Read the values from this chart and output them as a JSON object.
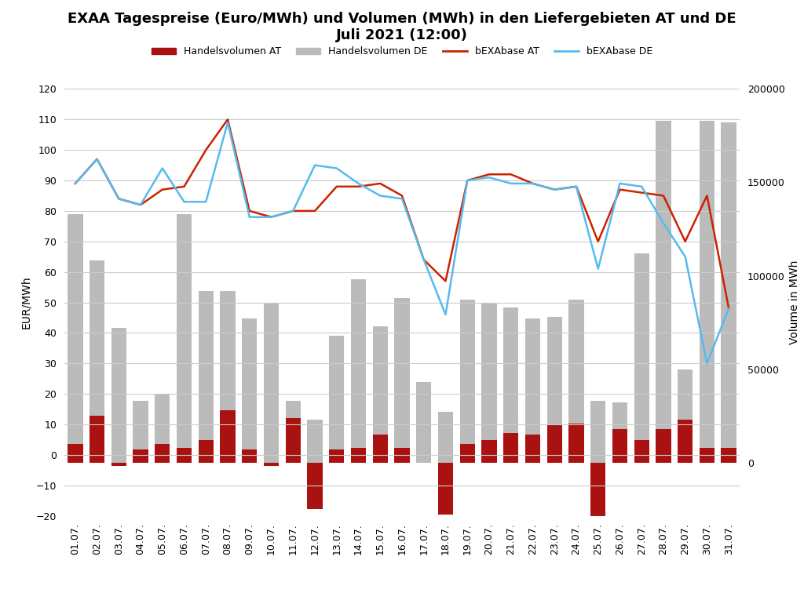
{
  "title": "EXAA Tagespreise (Euro/MWh) und Volumen (MWh) in den Liefergebieten AT und DE\nJuli 2021 (12:00)",
  "dates": [
    "01.07.",
    "02.07.",
    "03.07.",
    "04.07.",
    "05.07.",
    "06.07.",
    "07.07.",
    "08.07.",
    "09.07.",
    "10.07.",
    "11.07.",
    "12.07.",
    "13.07.",
    "14.07.",
    "15.07.",
    "16.07.",
    "17.07.",
    "18.07.",
    "19.07.",
    "20.07.",
    "21.07.",
    "22.07.",
    "23.07.",
    "24.07.",
    "25.07.",
    "26.07.",
    "27.07.",
    "28.07.",
    "29.07.",
    "30.07.",
    "31.07."
  ],
  "handelsvolumen_AT_MWh": [
    10000,
    25000,
    -2000,
    7000,
    10000,
    8000,
    12000,
    28000,
    7000,
    -2000,
    24000,
    -25000,
    7000,
    8000,
    15000,
    8000,
    0,
    -28000,
    10000,
    12000,
    16000,
    15000,
    20000,
    21000,
    -33000,
    18000,
    12000,
    18000,
    23000,
    8000,
    8000
  ],
  "handelsvolumen_DE_MWh": [
    133000,
    108000,
    72000,
    33000,
    37000,
    133000,
    92000,
    92000,
    77000,
    85000,
    33000,
    23000,
    68000,
    98000,
    73000,
    88000,
    43000,
    27000,
    87000,
    85000,
    83000,
    77000,
    78000,
    87000,
    33000,
    32000,
    112000,
    183000,
    50000,
    183000,
    182000
  ],
  "bEXAbase_AT": [
    89,
    97,
    84,
    82,
    87,
    88,
    100,
    110,
    80,
    78,
    80,
    80,
    88,
    88,
    89,
    85,
    64,
    57,
    90,
    92,
    92,
    89,
    87,
    88,
    70,
    87,
    86,
    85,
    70,
    85,
    48
  ],
  "bEXAbase_DE": [
    89,
    97,
    84,
    82,
    94,
    83,
    83,
    109,
    78,
    78,
    80,
    95,
    94,
    89,
    85,
    84,
    64,
    46,
    90,
    91,
    89,
    89,
    87,
    88,
    61,
    89,
    88,
    76,
    65,
    30,
    48
  ],
  "ylabel_left": "EUR/MWh",
  "ylabel_right": "Volume in MWh",
  "ylim_left": [
    -20,
    120
  ],
  "ylim_right": [
    -28571,
    171429
  ],
  "yticks_left": [
    -20,
    -10,
    0,
    10,
    20,
    30,
    40,
    50,
    60,
    70,
    80,
    90,
    100,
    110,
    120
  ],
  "yticks_right": [
    0,
    50000,
    100000,
    150000,
    200000
  ],
  "yticks_right_labels": [
    "0",
    "50000",
    "100000",
    "150000",
    "200000"
  ],
  "color_AT_bar": "#aa1111",
  "color_DE_bar": "#bbbbbb",
  "color_AT_line": "#cc2200",
  "color_DE_line": "#55bbee",
  "background_color": "#ffffff",
  "grid_color": "#cccccc",
  "legend_labels": [
    "Handelsvolumen AT",
    "Handelsvolumen DE",
    "bEXAbase AT",
    "bEXAbase DE"
  ],
  "title_fontsize": 13,
  "axis_fontsize": 10,
  "tick_fontsize": 9,
  "legend_fontsize": 9,
  "bar_width": 0.7
}
